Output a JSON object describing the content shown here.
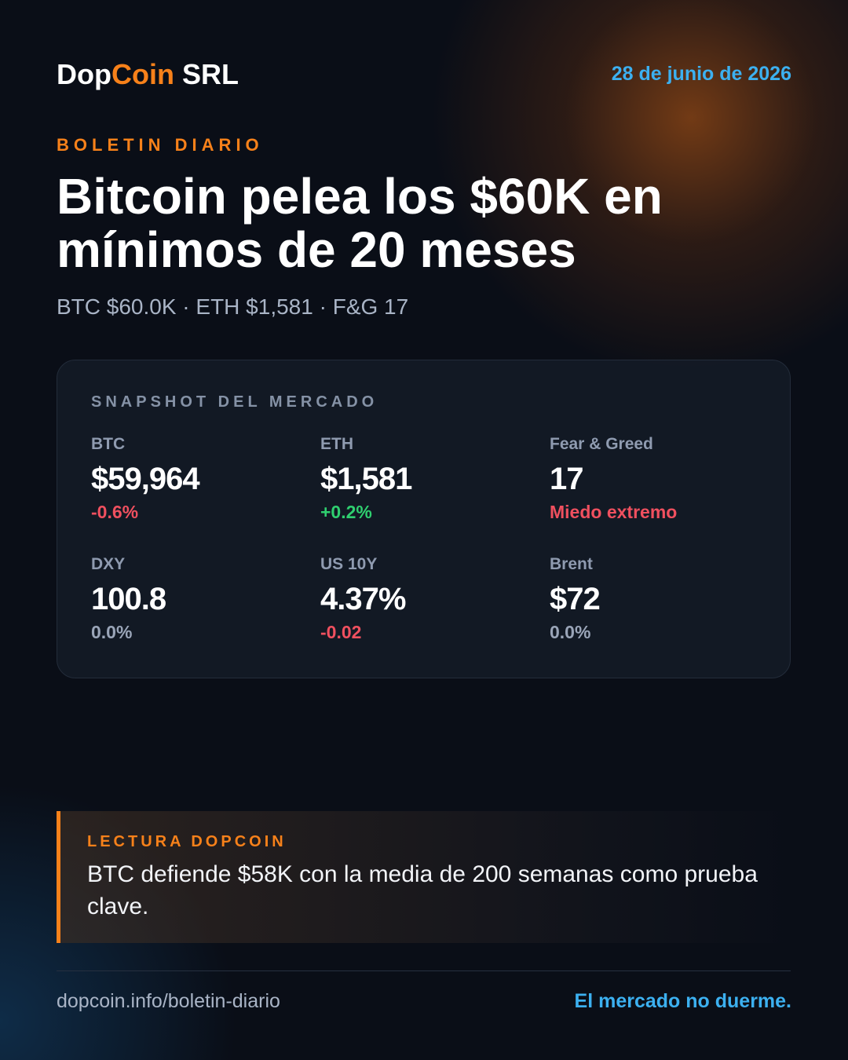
{
  "header": {
    "brand": {
      "prefix": "Dop",
      "highlight": "Coin",
      "suffix": "SRL"
    },
    "date": "28 de junio de 2026"
  },
  "kicker": "BOLETIN DIARIO",
  "title": "Bitcoin pelea los $60K en mínimos de 20 meses",
  "subtitle": "BTC $60.0K · ETH $1,581 · F&G 17",
  "snapshot": {
    "label": "SNAPSHOT DEL MERCADO",
    "metrics": [
      {
        "label": "BTC",
        "value": "$59,964",
        "change": "-0.6%",
        "tone": "negative"
      },
      {
        "label": "ETH",
        "value": "$1,581",
        "change": "+0.2%",
        "tone": "positive"
      },
      {
        "label": "Fear & Greed",
        "value": "17",
        "change": "Miedo extremo",
        "tone": "negative"
      },
      {
        "label": "DXY",
        "value": "100.8",
        "change": "0.0%",
        "tone": "neutral"
      },
      {
        "label": "US 10Y",
        "value": "4.37%",
        "change": "-0.02",
        "tone": "negative"
      },
      {
        "label": "Brent",
        "value": "$72",
        "change": "0.0%",
        "tone": "neutral"
      }
    ]
  },
  "callout": {
    "label": "LECTURA DOPCOIN",
    "text": "BTC defiende $58K con la media de 200 semanas como prueba clave."
  },
  "footer": {
    "url": "dopcoin.info/boletin-diario",
    "tagline": "El mercado no duerme."
  }
}
